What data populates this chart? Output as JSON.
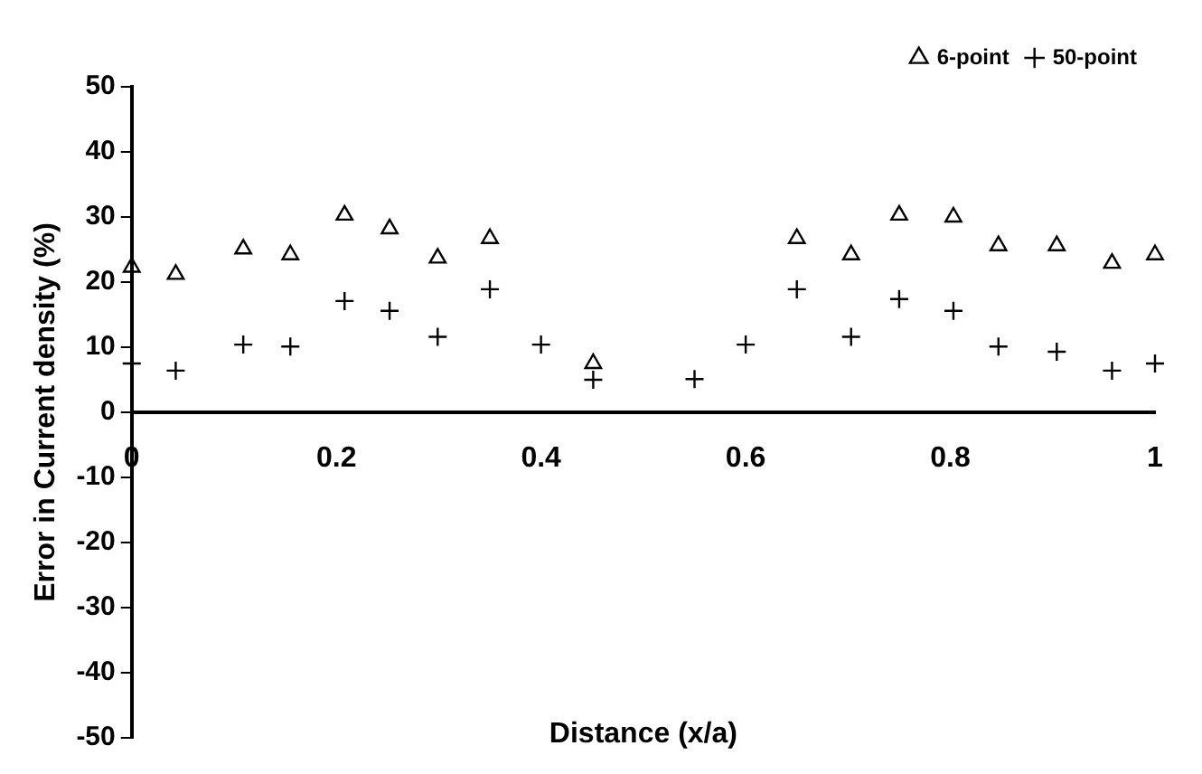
{
  "chart_data": {
    "type": "scatter",
    "xlabel": "Distance (x/a)",
    "ylabel": "Error in Current density (%)",
    "xlim": [
      0,
      1
    ],
    "xticks": [
      0,
      0.2,
      0.4,
      0.6,
      0.8,
      1
    ],
    "ylim": [
      -50,
      50
    ],
    "yticks": [
      -50,
      -40,
      -30,
      -20,
      -10,
      0,
      10,
      20,
      30,
      40,
      50
    ],
    "grid": false,
    "legend": "top right",
    "series": [
      {
        "name": "6-point",
        "color": "#000000",
        "marker": "triangle",
        "x": [
          0,
          0.043,
          0.109,
          0.155,
          0.208,
          0.252,
          0.299,
          0.35,
          0.451,
          0.65,
          0.703,
          0.75,
          0.803,
          0.847,
          0.904,
          0.958,
          1
        ],
        "values": [
          22.3,
          21.2,
          25.1,
          24.2,
          30.3,
          28.2,
          23.7,
          26.7,
          7.5,
          26.7,
          24.2,
          30.3,
          30.0,
          25.6,
          25.6,
          22.9,
          24.2
        ]
      },
      {
        "name": "50-point",
        "color": "#000000",
        "marker": "cross",
        "x": [
          0,
          0.043,
          0.109,
          0.155,
          0.208,
          0.252,
          0.299,
          0.35,
          0.4,
          0.451,
          0.55,
          0.6,
          0.65,
          0.703,
          0.75,
          0.803,
          0.847,
          0.904,
          0.958,
          1
        ],
        "values": [
          7.5,
          6.4,
          10.4,
          10.1,
          17.1,
          15.6,
          11.6,
          18.9,
          10.4,
          5.0,
          5.1,
          10.4,
          18.9,
          11.6,
          17.4,
          15.6,
          10.1,
          9.3,
          6.4,
          7.5
        ]
      }
    ]
  }
}
